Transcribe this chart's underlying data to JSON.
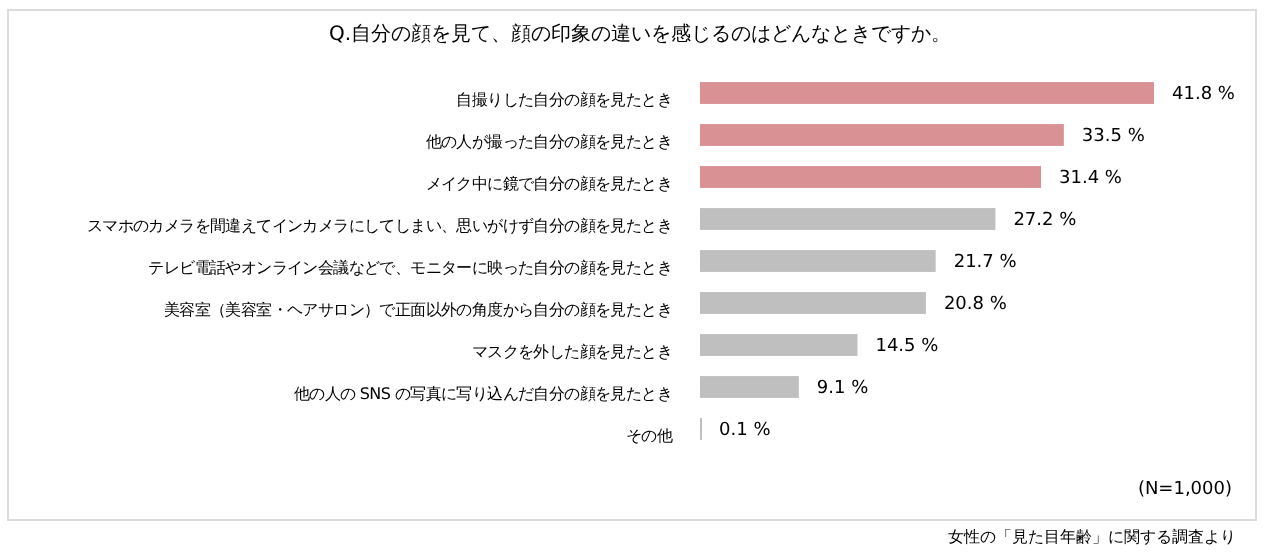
{
  "chart_data": {
    "type": "bar",
    "orientation": "horizontal",
    "title": "Q.自分の顔を見て、顔の印象の違いを感じるのはどんなときですか。",
    "categories": [
      "自撮りした自分の顔を見たとき",
      "他の人が撮った自分の顔を見たとき",
      "メイク中に鏡で自分の顔を見たとき",
      "スマホのカメラを間違えてインカメラにしてしまい、思いがけず自分の顔を見たとき",
      "テレビ電話やオンライン会議などで、モニターに映った自分の顔を見たとき",
      "美容室（美容室・ヘアサロン）で正面以外の角度から自分の顔を見たとき",
      "マスクを外した顔を見たとき",
      "他の人の SNS の写真に写り込んだ自分の顔を見たとき",
      "その他"
    ],
    "values": [
      41.8,
      33.5,
      31.4,
      27.2,
      21.7,
      20.8,
      14.5,
      9.1,
      0.1
    ],
    "colors": [
      "#d99194",
      "#d99194",
      "#d99194",
      "#bfbfbf",
      "#bfbfbf",
      "#bfbfbf",
      "#bfbfbf",
      "#bfbfbf",
      "#bfbfbf"
    ],
    "value_labels": [
      "41.8 %",
      "33.5 %",
      "31.4 %",
      "27.2 %",
      "21.7 %",
      "20.8 %",
      "14.5 %",
      "9.1 %",
      "0.1 %"
    ],
    "annotations": [
      "(N=1,000)",
      "女性の「見た目年齢」に関する調査より"
    ]
  }
}
